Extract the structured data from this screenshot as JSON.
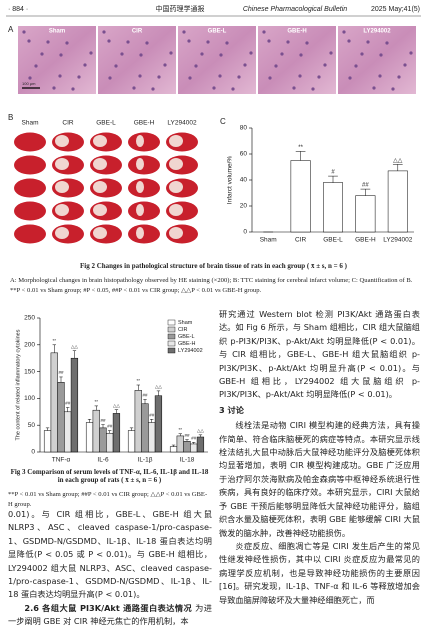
{
  "header": {
    "page": "· 884 ·",
    "journal_cn": "中国药理学通报",
    "journal_en": "Chinese Pharmacological Bulletin",
    "issue": "2025 May;41(5)"
  },
  "figure2": {
    "panel_a": "A",
    "panel_b": "B",
    "panels_a": [
      "Sham",
      "CIR",
      "GBE-L",
      "GBE-H",
      "LY294002"
    ],
    "scale_bar": "100 μm",
    "panels_b": [
      "Sham",
      "CIR",
      "GBE-L",
      "GBE-H",
      "LY294002"
    ],
    "title": "Fig 2   Changes in pathological structure of brain tissue of rats in each group ( x̄ ± s, n = 6 )",
    "note": "A: Morphological changes in brain histopathology observed by HE staining (×200); B: TTC staining for cerebral infarct volume; C: Quantification of B. **P < 0.01 vs Sham group; #P < 0.05, ##P < 0.01 vs CIR group; △△P < 0.01 vs GBE-H group."
  },
  "chart_data": [
    {
      "type": "bar",
      "panel_label": "C",
      "ylabel": "Infarct volume/%",
      "categories": [
        "Sham",
        "CIR",
        "GBE-L",
        "GBE-H",
        "LY294002"
      ],
      "values": [
        0,
        55,
        38,
        28,
        47
      ],
      "errors": [
        0,
        7,
        5,
        5,
        5
      ],
      "annotations": [
        null,
        "**",
        "#",
        "##",
        "△△"
      ],
      "color": "#ffffff",
      "ylim": [
        0,
        80
      ],
      "yticks": [
        0,
        20,
        40,
        60,
        80
      ]
    },
    {
      "type": "grouped_bar",
      "ylabel": "The content of related inflammatory cytokines",
      "categories": [
        "TNF-α",
        "IL-6",
        "IL-1β",
        "IL-18"
      ],
      "ylim": [
        0,
        250
      ],
      "yticks": [
        0,
        50,
        100,
        150,
        200,
        250
      ],
      "legend": "upper right",
      "series": [
        {
          "name": "Sham",
          "color": "#ffffff",
          "values": [
            40,
            55,
            40,
            10
          ],
          "errors": [
            5,
            6,
            5,
            3
          ],
          "annotations": [
            null,
            null,
            null,
            null
          ]
        },
        {
          "name": "CIR",
          "color": "#d0d0d0",
          "values": [
            185,
            78,
            115,
            30
          ],
          "errors": [
            15,
            8,
            10,
            4
          ],
          "annotations": [
            "**",
            "**",
            "**",
            "**"
          ]
        },
        {
          "name": "GBE-L",
          "color": "#9a9a9a",
          "values": [
            130,
            45,
            90,
            20
          ],
          "errors": [
            10,
            6,
            8,
            3
          ],
          "annotations": [
            "##",
            "##",
            "##",
            "##"
          ]
        },
        {
          "name": "GBE-H",
          "color": "#e8e8e8",
          "values": [
            75,
            35,
            55,
            15
          ],
          "errors": [
            8,
            5,
            6,
            3
          ],
          "annotations": [
            "##",
            "##",
            "##",
            "##"
          ]
        },
        {
          "name": "LY294002",
          "color": "#6e6e6e",
          "values": [
            175,
            72,
            105,
            28
          ],
          "errors": [
            14,
            7,
            9,
            4
          ],
          "annotations": [
            "△△",
            "△△",
            "△△",
            "△△"
          ]
        }
      ]
    }
  ],
  "figure3": {
    "title": "Fig 3   Comparison of serum levels of TNF-α, IL-6, IL-1β and IL-18 in each group of rats ( x̄ ± s, n = 6 )",
    "note": "**P < 0.01 vs Sham group; ##P < 0.01 vs CIR group; △△P < 0.01 vs GBE-H group."
  },
  "left_column": {
    "para1": "0.01)。与 CIR 组相比，GBE-L、GBE-H 组大鼠 NLRP3、ASC、cleaved caspase-1/pro-caspase-1、GSDMD-N/GSDMD、IL-1β、IL-18 蛋白表达均明显降低(P < 0.05 或 P < 0.01)。与 GBE-H 组相比，LY294002 组大鼠 NLRP3、ASC、cleaved caspase-1/pro-caspase-1、GSDMD-N/GSDMD、IL-1β、IL-18 蛋白表达均明显升高(P < 0.01)。",
    "heading": "2.6  各组大鼠 PI3K/Akt 通路蛋白表达情况",
    "para2": "为进一步阐明 GBE 对 CIR 神经元焦亡的作用机制，本"
  },
  "right_column": {
    "para1": "研究通过 Western blot 检测 PI3K/Akt 通路蛋白表达。如 Fig 6 所示，与 Sham 组相比，CIR 组大鼠脑组织 p-PI3K/PI3K、p-Akt/Akt 均明显降低(P < 0.01)。与 CIR 组相比，GBE-L、GBE-H 组大鼠脑组织 p-PI3K/PI3K、p-Akt/Akt 均明显升高(P < 0.01)。与 GBE-H 组相比，LY294002 组大鼠脑组织 p-PI3K/PI3K、p-Akt/Akt 均明显降低(P < 0.01)。",
    "heading": "3  讨论",
    "para2": "线栓法是动物 CIRI 模型构建的经典方法，具有操作简单、符合临床脑梗死的病症等特点。本研究显示线栓法结扎大鼠中动脉后大鼠神经功能评分及脑梗死体积均显著增加，表明 CIR 模型构建成功。GBE 广泛应用于治疗阿尔茨海默病及帕金森病等中枢神经系统退行性疾病，具有良好的临床疗效。本研究显示，CIRI 大鼠给予 GBE 干预后能够明显降低大鼠神经功能评分，脑组织含水量及脑梗死体积，表明 GBE 能够缓解 CIRI 大鼠微发的脑水肿，改善神经功能损伤。",
    "para3": "炎症反应、细胞凋亡等是 CIRI 发生后产生的常见性继发神经性损伤，其中以 CIRI 炎症反应为最常见的病理学反应机制，也是导致神经功能损伤的主要原因[16]。研究发现，IL-1β、TNF-α 和 IL-6 等释放增加会导致血脑屏障破坏及大量神经细胞死亡，而"
  }
}
